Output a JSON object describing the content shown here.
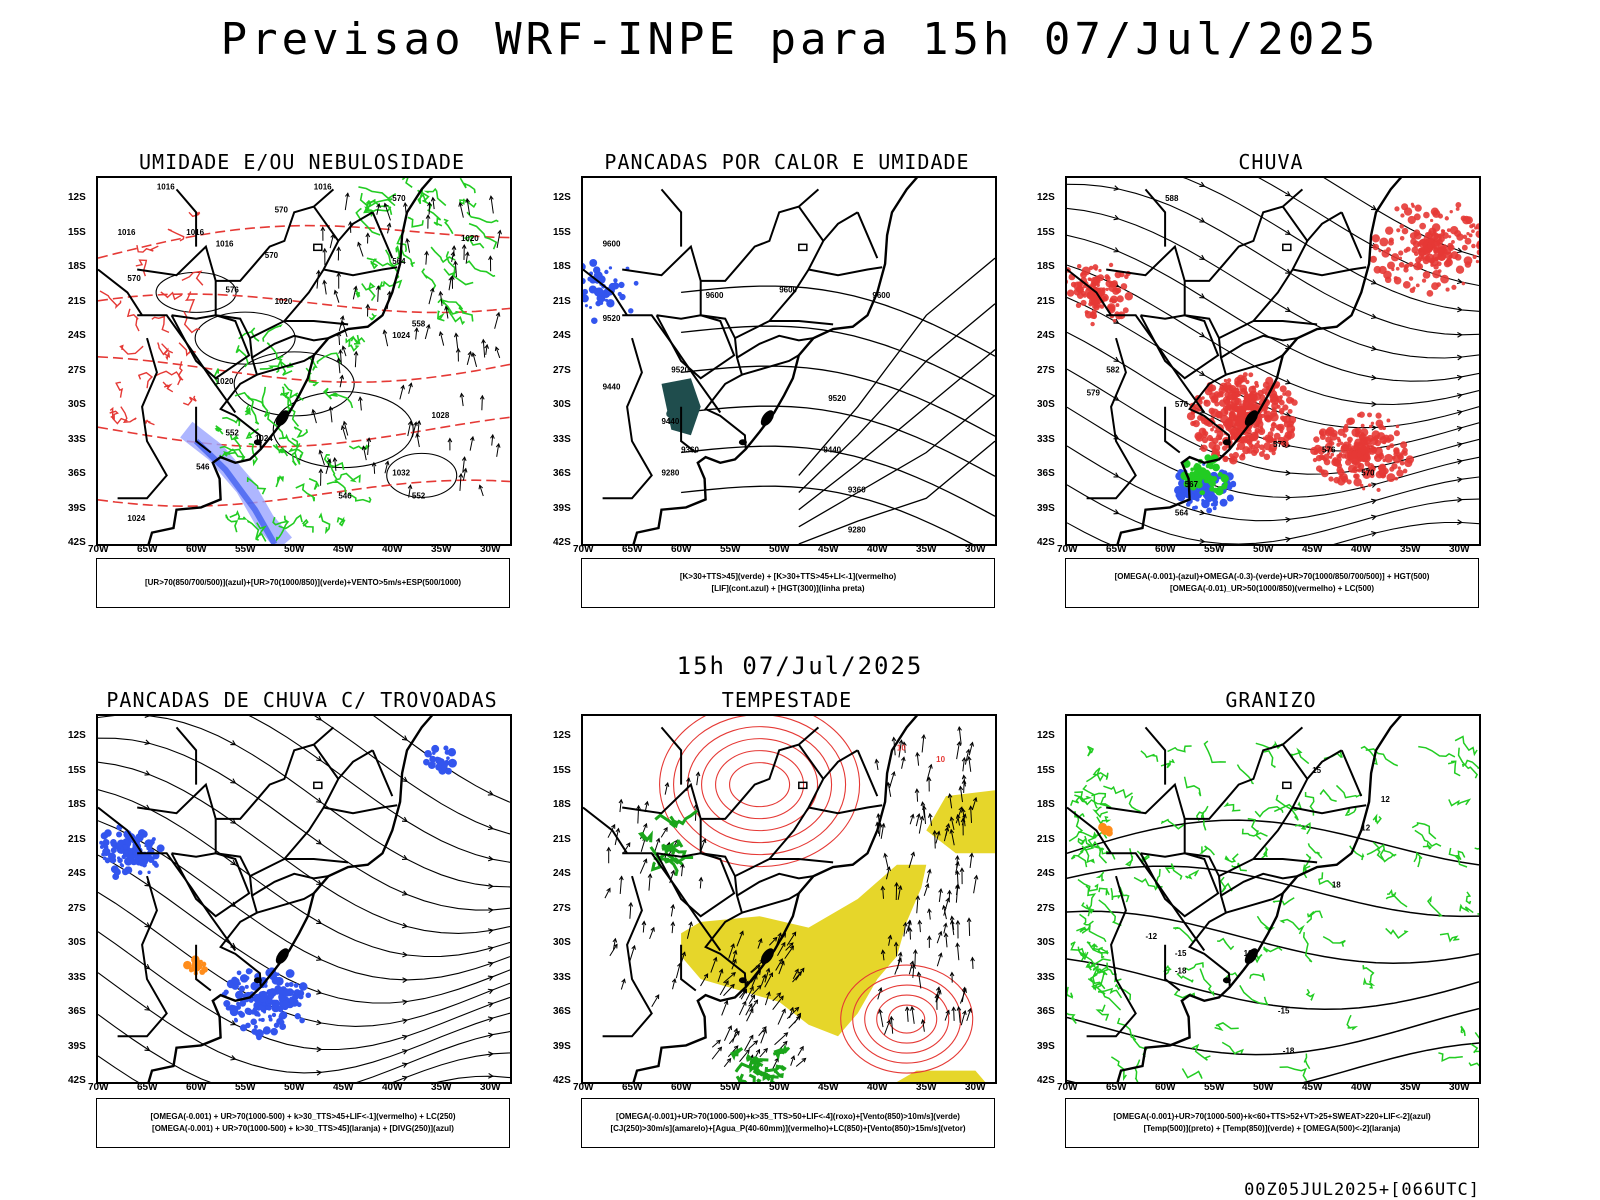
{
  "title": "Previsao WRF-INPE  para 15h 07/Jul/2025",
  "mid_title": "15h 07/Jul/2025",
  "footer": "00Z05JUL2025+[066UTC]",
  "lat_ticks": [
    "12S",
    "15S",
    "18S",
    "21S",
    "24S",
    "27S",
    "30S",
    "33S",
    "36S",
    "39S",
    "42S"
  ],
  "lon_ticks": [
    "70W",
    "65W",
    "60W",
    "55W",
    "50W",
    "45W",
    "40W",
    "35W",
    "30W"
  ],
  "colors": {
    "red": "#e53935",
    "green": "#22cc22",
    "blue": "#3355ee",
    "yellow": "#e6d62a",
    "darkgreen": "#1f4d4d",
    "orange": "#ff8c1a"
  },
  "panels": [
    {
      "title": "UMIDADE E/OU NEBULOSIDADE",
      "legend": [
        "[UR>70(850/700/500)](azul)+[UR>70(1000/850)](verde)+VENTO>5m/s+ESP(500/1000)"
      ],
      "labels": [
        "1016",
        "1016",
        "1016",
        "1016",
        "1016",
        "1020",
        "1020",
        "1020",
        "1024",
        "1024",
        "1028",
        "1032",
        "1024",
        "570",
        "570",
        "564",
        "558",
        "552",
        "546",
        "546",
        "552",
        "576",
        "570",
        "570"
      ]
    },
    {
      "title": "PANCADAS POR CALOR E UMIDADE",
      "legend": [
        "[K>30+TTS>45](verde) + [K>30+TTS>45+LI<-1](vermelho)",
        "[LIF](cont.azul) + [HGT(300)](linha preta)"
      ],
      "labels": [
        "9600",
        "9600",
        "9600",
        "9600",
        "9520",
        "9520",
        "9520",
        "9440",
        "9440",
        "9440",
        "9360",
        "9360",
        "9280",
        "9280"
      ]
    },
    {
      "title": "CHUVA",
      "legend": [
        "[OMEGA(-0.001)-(azul)+OMEGA(-0.3)-(verde)+UR>70(1000/850/700/500)] + HGT(500)",
        "[OMEGA(-0.01)_UR>50(1000/850)(vermelho) + LC(500)"
      ],
      "labels": [
        "588",
        "582",
        "579",
        "576",
        "573",
        "570",
        "567",
        "564",
        "576"
      ]
    },
    {
      "title": "PANCADAS DE CHUVA C/ TROVOADAS",
      "legend": [
        "[OMEGA(-0.001) + UR>70(1000-500) + k>30_TTS>45+LIF<-1](vermelho) + LC(250)",
        "[OMEGA(-0.001) + UR>70(1000-500) + k>30_TTS>45](laranja) + [DIVG(250)](azul)"
      ],
      "labels": []
    },
    {
      "title": "TEMPESTADE",
      "legend": [
        "[OMEGA(-0.001)+UR>70(1000-500)+k>35_TTS>50+LIF<-4](roxo)+[Vento(850)>10m/s](verde)",
        "[CJ(250)>30m/s](amarelo)+[Agua_P(40-60mm)](vermelho)+LC(850)+[Vento(850)>15m/s](vetor)"
      ],
      "labels": [
        "10",
        "10"
      ]
    },
    {
      "title": "GRANIZO",
      "legend": [
        "[OMEGA(-0.001)+UR>70(1000-500)+k<60+TTS>52+VT>25+SWEAT>220+LIF<-2](azul)",
        "[Temp(500)](preto) + [Temp(850)](verde) + [OMEGA(500)<-2](laranja)"
      ],
      "labels": [
        "-12",
        "-15",
        "-18",
        "-15",
        "-18",
        "12",
        "15",
        "12",
        "18",
        "12"
      ]
    }
  ]
}
